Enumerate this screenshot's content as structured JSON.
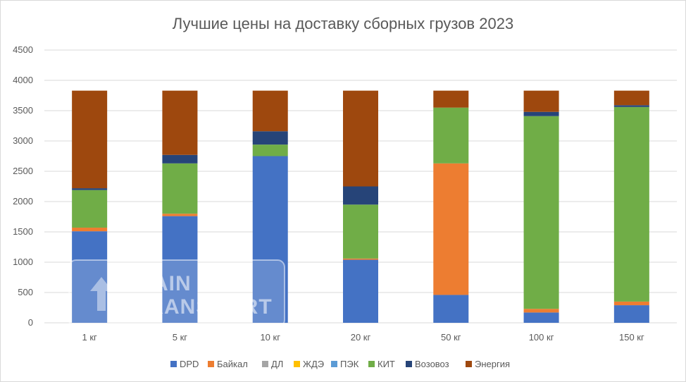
{
  "chart_data": {
    "type": "bar",
    "stacked": true,
    "title": "Лучшие цены на доставку сборных грузов 2023",
    "xlabel": "",
    "ylabel": "",
    "categories": [
      "1 кг",
      "5 кг",
      "10 кг",
      "20 кг",
      "50 кг",
      "100 кг",
      "150 кг"
    ],
    "ylim": [
      0,
      4500
    ],
    "yticks": [
      0,
      500,
      1000,
      1500,
      2000,
      2500,
      3000,
      3500,
      4000,
      4500
    ],
    "grid": true,
    "legend_position": "bottom",
    "series": [
      {
        "name": "DPD",
        "color": "#4472C4",
        "values": [
          1510,
          1760,
          2750,
          1040,
          460,
          170,
          290
        ]
      },
      {
        "name": "Байкал",
        "color": "#ED7D31",
        "values": [
          60,
          40,
          0,
          20,
          2170,
          60,
          60
        ]
      },
      {
        "name": "ДЛ",
        "color": "#A5A5A5",
        "values": [
          0,
          0,
          0,
          0,
          0,
          0,
          0
        ]
      },
      {
        "name": "ЖДЭ",
        "color": "#FFC000",
        "values": [
          0,
          0,
          0,
          0,
          0,
          0,
          0
        ]
      },
      {
        "name": "ПЭК",
        "color": "#5B9BD5",
        "values": [
          0,
          0,
          0,
          0,
          0,
          0,
          0
        ]
      },
      {
        "name": "КИТ",
        "color": "#70AD47",
        "values": [
          620,
          830,
          190,
          890,
          920,
          3180,
          3210
        ]
      },
      {
        "name": "Возовоз",
        "color": "#264478",
        "values": [
          30,
          140,
          220,
          300,
          0,
          70,
          30
        ]
      },
      {
        "name": "Энергия",
        "color": "#9E480E",
        "values": [
          1610,
          1060,
          670,
          1580,
          280,
          350,
          240
        ]
      }
    ]
  },
  "watermark": {
    "line1": "MAIN",
    "line2": "TRANSPORT",
    "icon": "up-arrow-icon"
  }
}
